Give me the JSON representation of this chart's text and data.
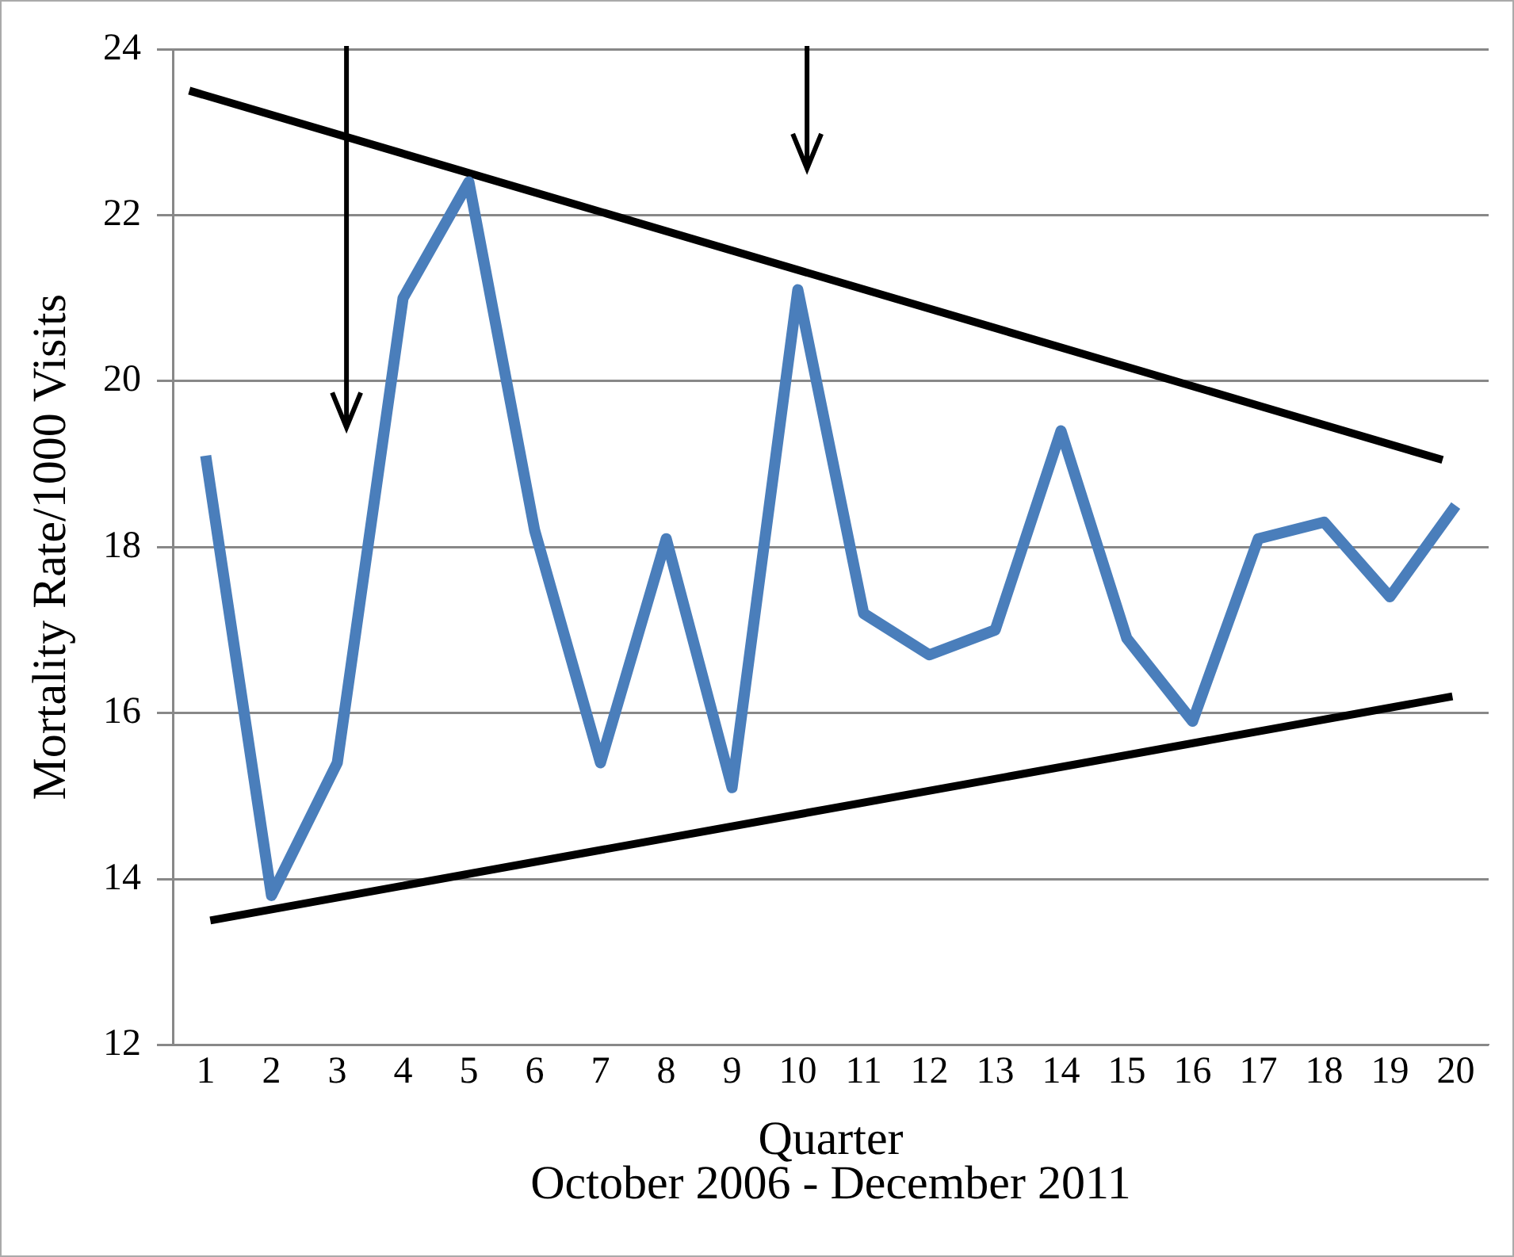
{
  "chart_data": {
    "type": "line",
    "ylabel": "Mortality Rate/1000 Visits",
    "xlabel": "Quarter",
    "annotations": [
      "October 2006 - December 2011"
    ],
    "xlim": [
      0.5,
      20.5
    ],
    "xticks": [
      1,
      2,
      3,
      4,
      5,
      6,
      7,
      8,
      9,
      10,
      11,
      12,
      13,
      14,
      15,
      16,
      17,
      18,
      19,
      20
    ],
    "ylim": [
      12,
      24
    ],
    "yticks": [
      12,
      14,
      16,
      18,
      20,
      22,
      24
    ],
    "grid": "y",
    "legend": false,
    "marker": "none",
    "line_style": "solid",
    "series": [
      {
        "color": "#4a7ebb",
        "x": [
          1,
          2,
          3,
          4,
          5,
          6,
          7,
          8,
          9,
          10,
          11,
          12,
          13,
          14,
          15,
          16,
          17,
          18,
          19,
          20
        ],
        "values": [
          19.1,
          13.8,
          15.4,
          21.0,
          22.4,
          18.2,
          15.4,
          18.1,
          15.1,
          21.1,
          17.2,
          16.7,
          17.0,
          19.4,
          16.9,
          15.9,
          18.1,
          18.3,
          17.4,
          18.5
        ]
      },
      {
        "type": "line",
        "color": "#000000",
        "x": [
          0.75,
          19.8
        ],
        "values": [
          23.5,
          19.05
        ]
      },
      {
        "type": "line",
        "color": "#000000",
        "x": [
          1.07,
          19.95
        ],
        "values": [
          13.5,
          16.2
        ]
      }
    ]
  }
}
